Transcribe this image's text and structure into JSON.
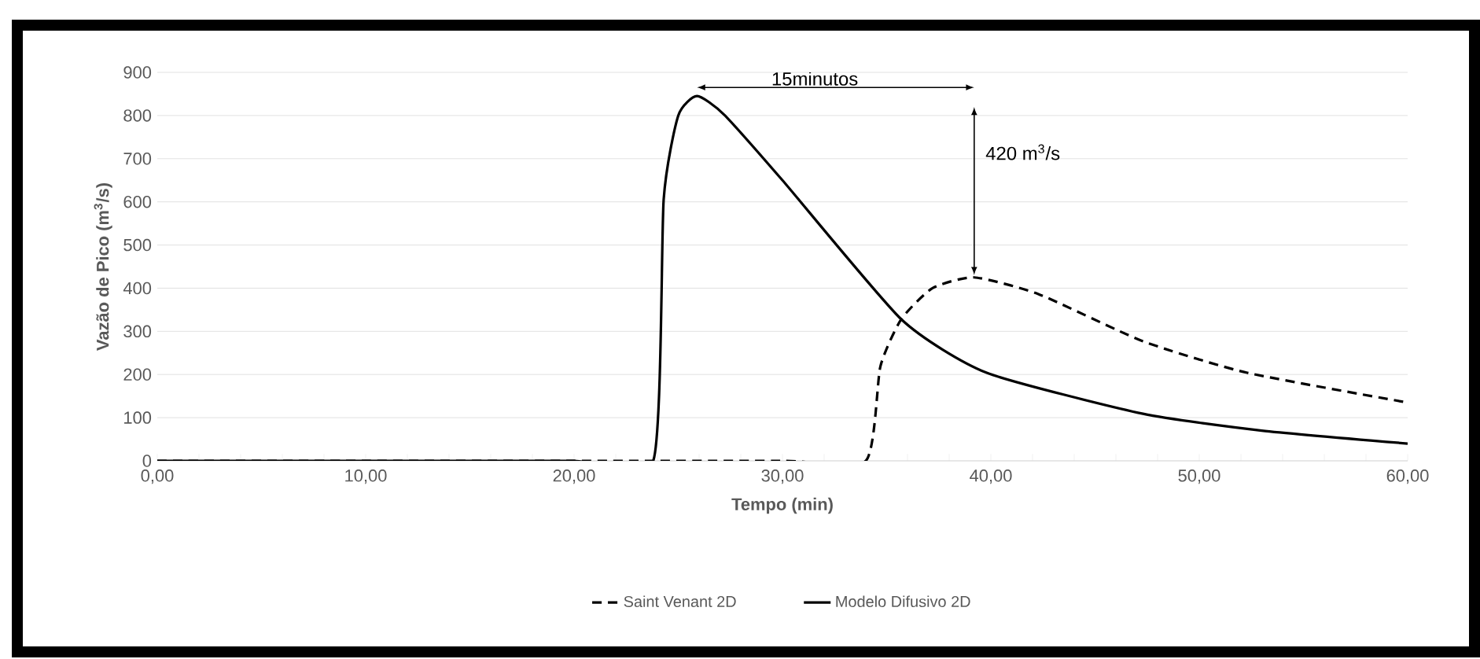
{
  "chart_data": {
    "type": "line",
    "xlabel": "Tempo (min)",
    "ylabel": "Vazão de Pico (m$^{3}$/s)",
    "xlim": [
      0,
      60
    ],
    "ylim": [
      0,
      900
    ],
    "xticks": [
      {
        "value": 0,
        "label": "0,00"
      },
      {
        "value": 2,
        "label": null
      },
      {
        "value": 4,
        "label": null
      },
      {
        "value": 6,
        "label": null
      },
      {
        "value": 8,
        "label": null
      },
      {
        "value": 10,
        "label": "10,00"
      },
      {
        "value": 12,
        "label": null
      },
      {
        "value": 14,
        "label": null
      },
      {
        "value": 16,
        "label": null
      },
      {
        "value": 18,
        "label": null
      },
      {
        "value": 20,
        "label": "20,00"
      },
      {
        "value": 22,
        "label": null
      },
      {
        "value": 24,
        "label": null
      },
      {
        "value": 26,
        "label": null
      },
      {
        "value": 28,
        "label": null
      },
      {
        "value": 30,
        "label": "30,00"
      },
      {
        "value": 32,
        "label": null
      },
      {
        "value": 34,
        "label": null
      },
      {
        "value": 36,
        "label": null
      },
      {
        "value": 38,
        "label": null
      },
      {
        "value": 40,
        "label": "40,00"
      },
      {
        "value": 42,
        "label": null
      },
      {
        "value": 44,
        "label": null
      },
      {
        "value": 46,
        "label": null
      },
      {
        "value": 48,
        "label": null
      },
      {
        "value": 50,
        "label": "50,00"
      },
      {
        "value": 52,
        "label": null
      },
      {
        "value": 54,
        "label": null
      },
      {
        "value": 56,
        "label": null
      },
      {
        "value": 58,
        "label": null
      },
      {
        "value": 60,
        "label": "60,00"
      }
    ],
    "yticks": [
      0,
      100,
      200,
      300,
      400,
      500,
      600,
      700,
      800,
      900
    ],
    "grid": "y",
    "legend": "bottom",
    "marker": "none",
    "series": [
      {
        "name": "Saint Venant 2D",
        "color": "#000000",
        "line_style": "dashed",
        "x": [
          0,
          10,
          20,
          30,
          34,
          34.7,
          35.7,
          37.2,
          39.2,
          42.3,
          47.3,
          52.3,
          60
        ],
        "values": [
          0,
          0,
          0,
          0,
          0,
          219,
          328,
          400,
          425,
          386,
          277,
          204,
          135
        ]
      },
      {
        "name": "Modelo Difusivo 2D",
        "color": "#000000",
        "line_style": "solid",
        "x": [
          0,
          10,
          20,
          23.8,
          24.3,
          25,
          25.9,
          27.2,
          30,
          35.7,
          39.8,
          47.3,
          53,
          60
        ],
        "values": [
          0,
          0,
          0,
          0,
          606,
          800,
          845,
          802,
          650,
          328,
          204,
          109,
          70,
          40
        ]
      }
    ],
    "annotations": [
      "15minutos",
      "420 m$^{3}$/s"
    ]
  }
}
